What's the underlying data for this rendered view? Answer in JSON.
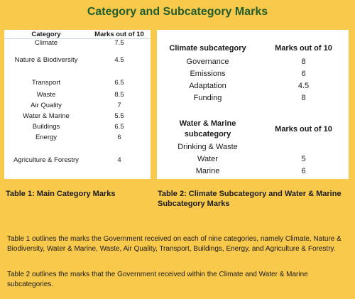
{
  "title": "Category and Subcategory Marks",
  "table1": {
    "headers": [
      "Category",
      "Marks out of 10"
    ],
    "rows": [
      {
        "category": "Climate",
        "mark": "7.5"
      },
      {
        "category": "Nature & Biodiversity",
        "mark": "4.5"
      },
      {
        "category": "Transport",
        "mark": "6.5"
      },
      {
        "category": "Waste",
        "mark": "8.5"
      },
      {
        "category": "Air Quality",
        "mark": "7"
      },
      {
        "category": "Water & Marine",
        "mark": "5.5"
      },
      {
        "category": "Buildings",
        "mark": "6.5"
      },
      {
        "category": "Energy",
        "mark": "6"
      },
      {
        "category": "Agriculture & Forestry",
        "mark": "4"
      }
    ]
  },
  "table2": {
    "climate_headers": [
      "Climate subcategory",
      "Marks out of 10"
    ],
    "climate_rows": [
      {
        "subcategory": "Governance",
        "mark": "8"
      },
      {
        "subcategory": "Emissions",
        "mark": "6"
      },
      {
        "subcategory": "Adaptation",
        "mark": "4.5"
      },
      {
        "subcategory": "Funding",
        "mark": "8"
      }
    ],
    "water_headers": [
      "Water & Marine subcategory",
      "Marks out of 10"
    ],
    "water_rows": [
      {
        "subcategory": "Drinking & Waste",
        "mark": ""
      },
      {
        "subcategory": "Water",
        "mark": "5"
      },
      {
        "subcategory": "Marine",
        "mark": "6"
      }
    ]
  },
  "captions": {
    "table1": "Table 1: Main Category Marks",
    "table2": "Table 2: Climate Subcategory and Water & Marine Subcategory Marks"
  },
  "paragraphs": [
    "Table 1 outlines the marks the Government received on each of nine categories, namely Climate, Nature & Biodiversity, Water & Marine, Waste, Air Quality, Transport, Buildings, Energy, and Agriculture & Forestry.",
    "Table 2 outlines the marks that the Government received within the Climate and Water & Marine subcategories."
  ]
}
